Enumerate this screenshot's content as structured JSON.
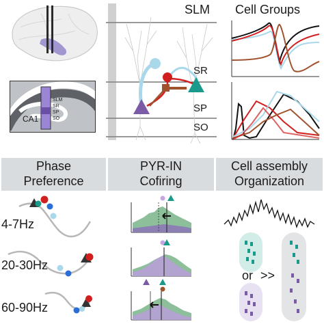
{
  "top": {
    "layers": [
      "SLM",
      "SR",
      "SP",
      "SO"
    ],
    "cell_groups_title": "Cell Groups",
    "inset": {
      "region": "CA1",
      "layers": [
        "SLM",
        "SR",
        "SP",
        "SO"
      ]
    }
  },
  "columns": [
    {
      "title_line1": "Phase",
      "title_line2": "Preference"
    },
    {
      "title_line1": "PYR-IN",
      "title_line2": "Cofiring"
    },
    {
      "title_line1": "Cell assembly",
      "title_line2": "Organization"
    }
  ],
  "bands": [
    "4-7Hz",
    "20-30Hz",
    "60-90Hz"
  ],
  "assembly": {
    "or_label": "or",
    "gt_label": ">>"
  },
  "colors": {
    "pyramidal": "#7b5aa6",
    "sr_interneuron": "#d11f1f",
    "slm_interneuron": "#a8d8ea",
    "brown_interneuron": "#a0522d",
    "teal_interneuron": "#1a9a8a",
    "black_trace": "#111111",
    "header_band": "#d9dcdf"
  }
}
